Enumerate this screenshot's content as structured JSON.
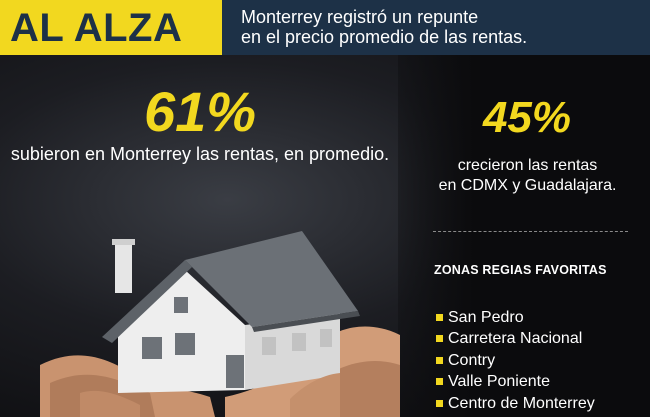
{
  "header": {
    "tag": "AL ALZA",
    "subtitle_line1": "Monterrey registró un repunte",
    "subtitle_line2": "en el precio promedio de las rentas."
  },
  "stat_monterrey": {
    "value": "61%",
    "description": "subieron en Monterrey las rentas, en promedio."
  },
  "stat_cdmx": {
    "value": "45%",
    "description_line1": "crecieron las rentas",
    "description_line2": "en CDMX y Guadalajara."
  },
  "zonas": {
    "title": "ZONAS REGIAS FAVORITAS",
    "items": [
      "San Pedro",
      "Carretera Nacional",
      "Contry",
      "Valle Poniente",
      "Centro de Monterrey"
    ]
  },
  "colors": {
    "accent_yellow": "#f2d81f",
    "header_navy": "#1d3147",
    "background": "#0d0d0f"
  }
}
